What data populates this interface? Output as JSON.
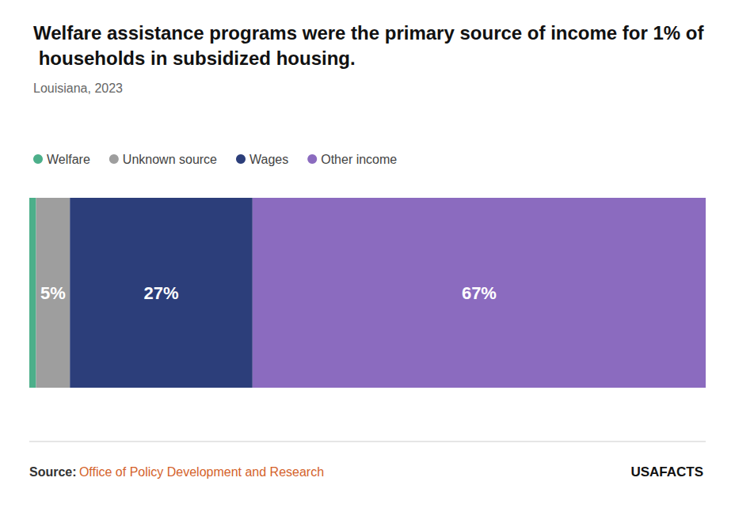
{
  "chart_data": {
    "type": "bar",
    "orientation": "horizontal",
    "stacked": true,
    "title": "Welfare assistance programs were the primary source of income for 1% of households in subsidized housing.",
    "subtitle": "Louisiana, 2023",
    "categories": [
      null
    ],
    "series": [
      {
        "name": "Welfare",
        "color": "#4caf8a",
        "values": [
          1
        ],
        "value_labels": [
          null
        ]
      },
      {
        "name": "Unknown source",
        "color": "#9e9e9e",
        "values": [
          5
        ],
        "value_labels": [
          "5%"
        ]
      },
      {
        "name": "Wages",
        "color": "#2c3e7a",
        "values": [
          27
        ],
        "value_labels": [
          "27%"
        ]
      },
      {
        "name": "Other income",
        "color": "#8b6bbf",
        "values": [
          67
        ],
        "value_labels": [
          "67%"
        ]
      }
    ],
    "xlim": [
      0,
      100
    ],
    "data_labels": true,
    "tick_labels": false,
    "grid": false,
    "legend": "upper left",
    "annotations": [
      "Source:",
      "Office of Policy Development and Research",
      "USAFACTS"
    ]
  }
}
